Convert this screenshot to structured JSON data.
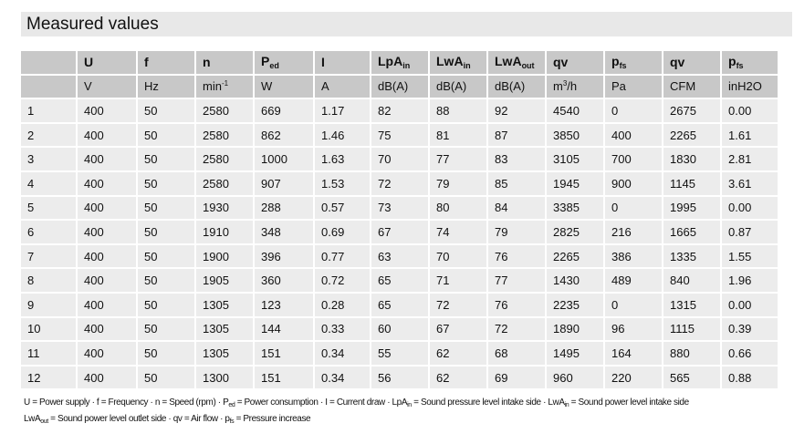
{
  "title": "Measured values",
  "headers": [
    {
      "main": "",
      "sub": ""
    },
    {
      "main": "U",
      "sub": ""
    },
    {
      "main": "f",
      "sub": ""
    },
    {
      "main": "n",
      "sub": ""
    },
    {
      "main": "P",
      "sub": "ed"
    },
    {
      "main": "I",
      "sub": ""
    },
    {
      "main": "LpA",
      "sub": "in"
    },
    {
      "main": "LwA",
      "sub": "in"
    },
    {
      "main": "LwA",
      "sub": "out"
    },
    {
      "main": "qv",
      "sub": ""
    },
    {
      "main": "p",
      "sub": "fs"
    },
    {
      "main": "qv",
      "sub": ""
    },
    {
      "main": "p",
      "sub": "fs"
    }
  ],
  "units": [
    {
      "main": "",
      "sup": ""
    },
    {
      "main": "V",
      "sup": ""
    },
    {
      "main": "Hz",
      "sup": ""
    },
    {
      "main": "min",
      "sup": "-1"
    },
    {
      "main": "W",
      "sup": ""
    },
    {
      "main": "A",
      "sup": ""
    },
    {
      "main": "dB(A)",
      "sup": ""
    },
    {
      "main": "dB(A)",
      "sup": ""
    },
    {
      "main": "dB(A)",
      "sup": ""
    },
    {
      "main": "m",
      "sup": "3",
      "after": "/h"
    },
    {
      "main": "Pa",
      "sup": ""
    },
    {
      "main": "CFM",
      "sup": ""
    },
    {
      "main": "inH2O",
      "sup": ""
    }
  ],
  "rows": [
    [
      "1",
      "400",
      "50",
      "2580",
      "669",
      "1.17",
      "82",
      "88",
      "92",
      "4540",
      "0",
      "2675",
      "0.00"
    ],
    [
      "2",
      "400",
      "50",
      "2580",
      "862",
      "1.46",
      "75",
      "81",
      "87",
      "3850",
      "400",
      "2265",
      "1.61"
    ],
    [
      "3",
      "400",
      "50",
      "2580",
      "1000",
      "1.63",
      "70",
      "77",
      "83",
      "3105",
      "700",
      "1830",
      "2.81"
    ],
    [
      "4",
      "400",
      "50",
      "2580",
      "907",
      "1.53",
      "72",
      "79",
      "85",
      "1945",
      "900",
      "1145",
      "3.61"
    ],
    [
      "5",
      "400",
      "50",
      "1930",
      "288",
      "0.57",
      "73",
      "80",
      "84",
      "3385",
      "0",
      "1995",
      "0.00"
    ],
    [
      "6",
      "400",
      "50",
      "1910",
      "348",
      "0.69",
      "67",
      "74",
      "79",
      "2825",
      "216",
      "1665",
      "0.87"
    ],
    [
      "7",
      "400",
      "50",
      "1900",
      "396",
      "0.77",
      "63",
      "70",
      "76",
      "2265",
      "386",
      "1335",
      "1.55"
    ],
    [
      "8",
      "400",
      "50",
      "1905",
      "360",
      "0.72",
      "65",
      "71",
      "77",
      "1430",
      "489",
      "840",
      "1.96"
    ],
    [
      "9",
      "400",
      "50",
      "1305",
      "123",
      "0.28",
      "65",
      "72",
      "76",
      "2235",
      "0",
      "1315",
      "0.00"
    ],
    [
      "10",
      "400",
      "50",
      "1305",
      "144",
      "0.33",
      "60",
      "67",
      "72",
      "1890",
      "96",
      "1115",
      "0.39"
    ],
    [
      "11",
      "400",
      "50",
      "1305",
      "151",
      "0.34",
      "55",
      "62",
      "68",
      "1495",
      "164",
      "880",
      "0.66"
    ],
    [
      "12",
      "400",
      "50",
      "1300",
      "151",
      "0.34",
      "56",
      "62",
      "69",
      "960",
      "220",
      "565",
      "0.88"
    ]
  ],
  "legend": [
    [
      {
        "t": "U = Power supply · f = Frequency · n = Speed (rpm) · P"
      },
      {
        "s": "ed"
      },
      {
        "t": " = Power consumption · I = Current draw · LpA"
      },
      {
        "s": "in"
      },
      {
        "t": " = Sound pressure level intake side · LwA"
      },
      {
        "s": "in"
      },
      {
        "t": " = Sound power level intake side"
      }
    ],
    [
      {
        "t": "LwA"
      },
      {
        "s": "out"
      },
      {
        "t": " = Sound power level outlet side · qv = Air flow · p"
      },
      {
        "s": "fs"
      },
      {
        "t": " = Pressure increase"
      }
    ]
  ]
}
